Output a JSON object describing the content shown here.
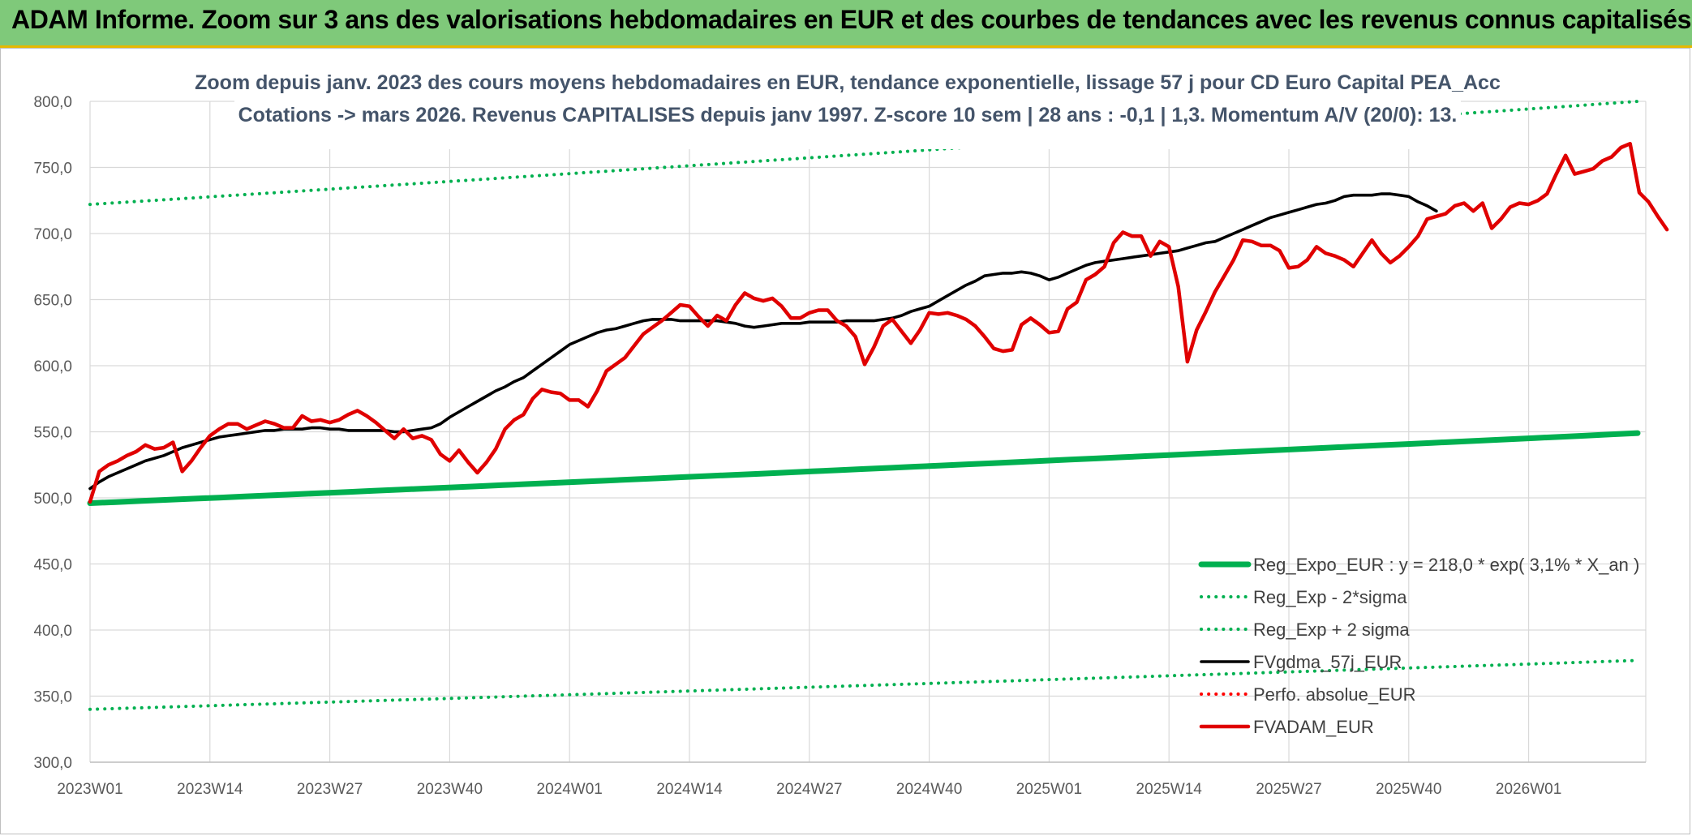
{
  "banner": {
    "title": "ADAM Informe. Zoom sur 3 ans des valorisations hebdomadaires en EUR et des courbes de tendances avec les revenus connus capitalisés"
  },
  "chart_data": {
    "type": "line",
    "title_lines": [
      "Zoom depuis janv. 2023 des cours moyens hebdomadaires en EUR, tendance exponentielle, lissage 57 j pour CD Euro Capital PEA_Acc",
      "Cotations -> mars 2026. Revenus CAPITALISES depuis janv 1997. Z-score 10 sem | 28 ans : -0,1 | 1,3. Momentum A/V (20/0): 13."
    ],
    "ylim": [
      300,
      800
    ],
    "y_ticks": [
      "800,0",
      "750,0",
      "700,0",
      "650,0",
      "600,0",
      "550,0",
      "500,0",
      "450,0",
      "400,0",
      "350,0",
      "300,0"
    ],
    "x_ticks": [
      "2023W01",
      "2023W14",
      "2023W27",
      "2023W40",
      "2024W01",
      "2024W14",
      "2024W27",
      "2024W40",
      "2025W01",
      "2025W14",
      "2025W27",
      "2025W40",
      "2026W01"
    ],
    "grid": true,
    "legend_position": "bottom-right",
    "series": [
      {
        "name": "Reg_Expo_EUR : y = 218,0 * exp( 3,1% *  X_an )",
        "color": "#00b050",
        "style": "solid-thick",
        "values": [
          496.0,
          549.0
        ]
      },
      {
        "name": "Reg_Exp - 2*sigma",
        "color": "#00b050",
        "style": "dotted",
        "values": [
          340.0,
          377.0
        ]
      },
      {
        "name": "Reg_Exp + 2 sigma",
        "color": "#00b050",
        "style": "dotted",
        "values": [
          722.0,
          800.0
        ]
      },
      {
        "name": "FVgdma_57j_EUR",
        "color": "#000000",
        "style": "solid",
        "values": [
          507,
          512,
          516,
          519,
          522,
          525,
          528,
          530,
          532,
          535,
          538,
          540,
          542,
          544,
          546,
          547,
          548,
          549,
          550,
          551,
          551,
          552,
          552,
          552,
          553,
          553,
          552,
          552,
          551,
          551,
          551,
          551,
          551,
          550,
          550,
          551,
          552,
          553,
          556,
          561,
          565,
          569,
          573,
          577,
          581,
          584,
          588,
          591,
          596,
          601,
          606,
          611,
          616,
          619,
          622,
          625,
          627,
          628,
          630,
          632,
          634,
          635,
          635,
          635,
          634,
          634,
          634,
          634,
          634,
          633,
          632,
          630,
          629,
          630,
          631,
          632,
          632,
          632,
          633,
          633,
          633,
          633,
          634,
          634,
          634,
          634,
          635,
          636,
          638,
          641,
          643,
          645,
          649,
          653,
          657,
          661,
          664,
          668,
          669,
          670,
          670,
          671,
          670,
          668,
          665,
          667,
          670,
          673,
          676,
          678,
          679,
          680,
          681,
          682,
          683,
          684,
          685,
          686,
          687,
          689,
          691,
          693,
          694,
          697,
          700,
          703,
          706,
          709,
          712,
          714,
          716,
          718,
          720,
          722,
          723,
          725,
          728,
          729,
          729,
          729,
          730,
          730,
          729,
          728,
          724,
          721,
          717
        ]
      },
      {
        "name": "Perfo. absolue_EUR",
        "color": "#ff0000",
        "style": "dotted",
        "values": []
      },
      {
        "name": "FVADAM_EUR",
        "color": "#e00000",
        "style": "solid-thick",
        "values": [
          497,
          520,
          525,
          528,
          532,
          535,
          540,
          537,
          538,
          542,
          520,
          528,
          538,
          547,
          552,
          556,
          556,
          552,
          555,
          558,
          556,
          553,
          553,
          562,
          558,
          559,
          557,
          559,
          563,
          566,
          562,
          557,
          551,
          545,
          552,
          545,
          547,
          544,
          533,
          528,
          536,
          527,
          519,
          527,
          537,
          552,
          559,
          563,
          575,
          582,
          580,
          579,
          574,
          574,
          569,
          581,
          596,
          601,
          606,
          615,
          624,
          629,
          634,
          640,
          646,
          645,
          637,
          630,
          638,
          634,
          646,
          655,
          651,
          649,
          651,
          645,
          636,
          636,
          640,
          642,
          642,
          634,
          630,
          622,
          601,
          614,
          630,
          635,
          626,
          617,
          627,
          640,
          639,
          640,
          638,
          635,
          630,
          622,
          613,
          611,
          612,
          631,
          636,
          631,
          625,
          626,
          643,
          648,
          665,
          669,
          675,
          693,
          701,
          698,
          698,
          683,
          694,
          690,
          660,
          603,
          627,
          641,
          656,
          668,
          680,
          695,
          694,
          691,
          691,
          687,
          674,
          675,
          680,
          690,
          685,
          683,
          680,
          675,
          685,
          695,
          685,
          678,
          683,
          690,
          698,
          711,
          713,
          715,
          721,
          723,
          717,
          723,
          704,
          711,
          720,
          723,
          722,
          725,
          730,
          745,
          759,
          745,
          747,
          749,
          755,
          758,
          765,
          768,
          731,
          724,
          713,
          703
        ]
      }
    ]
  }
}
